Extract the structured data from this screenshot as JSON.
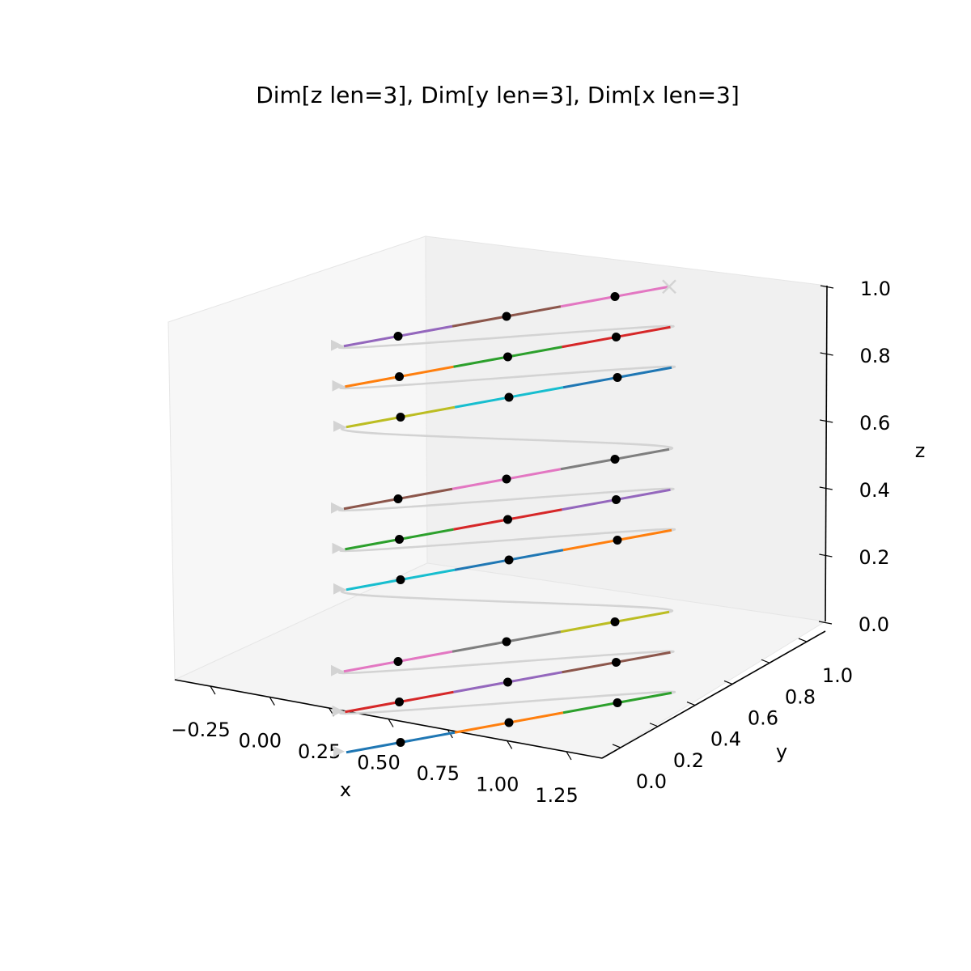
{
  "chart_data": {
    "type": "line3d",
    "title": "Dim[z len=3], Dim[y len=3], Dim[x len=3]",
    "xlabel": "x",
    "ylabel": "y",
    "zlabel": "z",
    "xlim": [
      -0.4,
      1.4
    ],
    "ylim": [
      -0.1,
      1.1
    ],
    "zlim": [
      0,
      1
    ],
    "x_ticks": [
      "−0.25",
      "0.00",
      "0.25",
      "0.50",
      "0.75",
      "1.00",
      "1.25"
    ],
    "x_tick_values": [
      -0.25,
      0,
      0.25,
      0.5,
      0.75,
      1.0,
      1.25
    ],
    "y_ticks": [
      "0.0",
      "0.2",
      "0.4",
      "0.6",
      "0.8",
      "1.0"
    ],
    "y_tick_values": [
      0,
      0.2,
      0.4,
      0.6,
      0.8,
      1.0
    ],
    "z_ticks": [
      "0.0",
      "0.2",
      "0.4",
      "0.6",
      "0.8",
      "1.0"
    ],
    "z_tick_values": [
      0,
      0.2,
      0.4,
      0.6,
      0.8,
      1.0
    ],
    "grid": false,
    "pane_color": "#f2f2f2",
    "path_color": "#d3d3d3",
    "point_color": "#000000",
    "segment_colors": [
      "#1f77b4",
      "#ff7f0e",
      "#2ca02c",
      "#d62728",
      "#9467bd",
      "#8c564b",
      "#e377c2",
      "#7f7f7f",
      "#bcbd22",
      "#17becf"
    ],
    "cell_points_x": [
      0,
      0.5,
      1
    ],
    "z_values": [
      0,
      0.5,
      1
    ],
    "y_values": [
      0,
      0.5,
      1
    ],
    "start_marker": "triangle",
    "end_marker": "x"
  }
}
